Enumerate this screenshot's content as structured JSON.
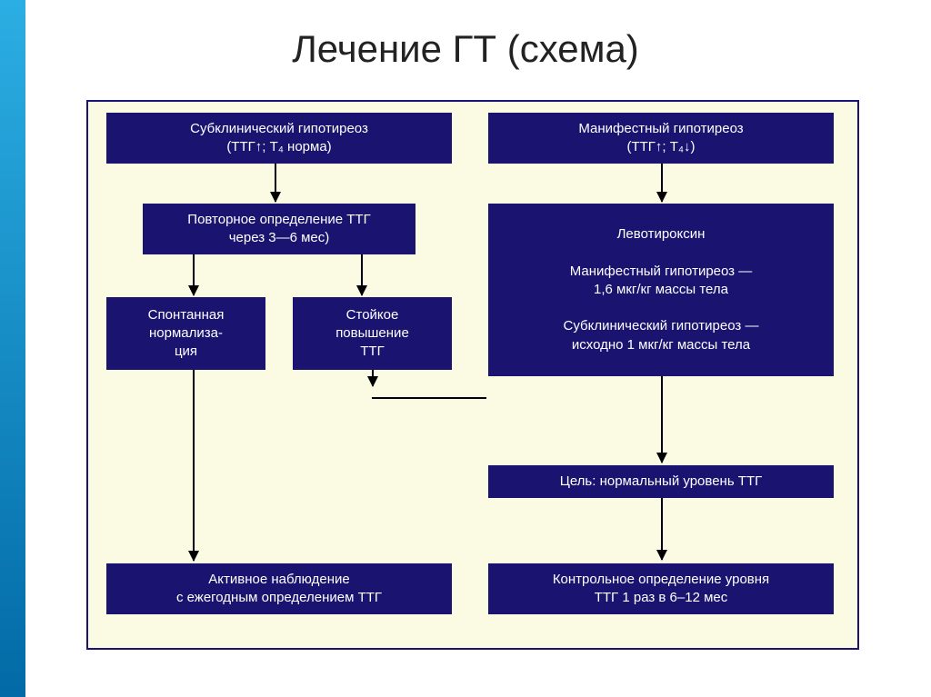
{
  "title": "Лечение ГТ (схема)",
  "accent_gradient": "linear-gradient(to bottom, #2baee3 0%, #026aa6 100%)",
  "chart": {
    "type": "flowchart",
    "background_color": "#fbfbe4",
    "border_color": "#1a1470",
    "box_color": "#1a1470",
    "box_text_color": "#ffffff",
    "title_fontsize": 42,
    "box_fontsize": 15,
    "nodes": {
      "a1": "Субклинический гипотиреоз\n(ТТГ↑; Т₄ норма)",
      "a2": "Повторное определение ТТГ\nчерез 3—6 мес)",
      "a3": "Спонтанная\nнормализа-\nция",
      "a4": "Стойкое\nповышение\nТТГ",
      "a5": "Активное наблюдение\nс ежегодным определением ТТГ",
      "b1": "Манифестный гипотиреоз\n(ТТГ↑; Т₄↓)",
      "b2": "Левотироксин\n\nМанифестный гипотиреоз —\n1,6 мкг/кг массы тела\n\nСубклинический гипотиреоз —\nисходно 1 мкг/кг массы тела",
      "b3": "Цель: нормальный уровень ТТГ",
      "b4": "Контрольное определение уровня\nТТГ 1 раз в 6–12 мес"
    }
  }
}
